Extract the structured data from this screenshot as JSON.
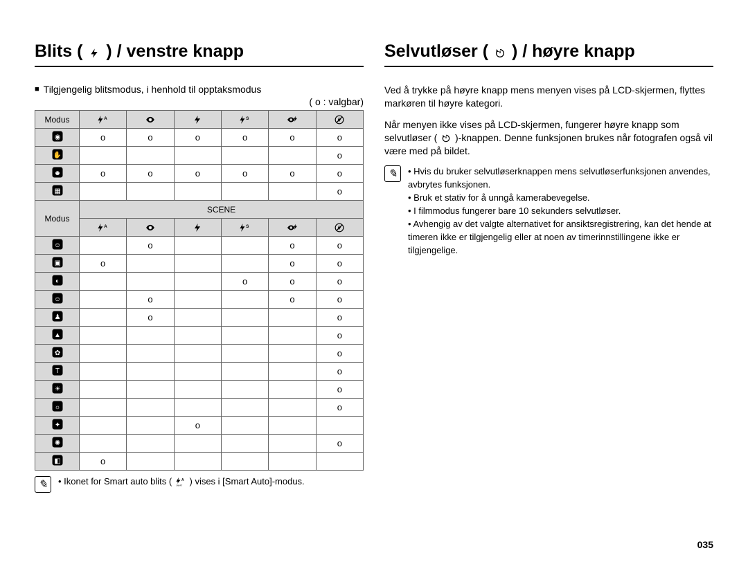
{
  "page_number": "035",
  "left": {
    "heading_pre": "Blits (",
    "heading_post": ") / venstre knapp",
    "subheading": "Tilgjengelig blitsmodus, i henhold til opptaksmodus",
    "legend": "( o : valgbar)",
    "table": {
      "header_label": "Modus",
      "scene_label": "SCENE",
      "columns_count": 6,
      "top_rows": [
        {
          "marks": [
            "o",
            "o",
            "o",
            "o",
            "o",
            "o"
          ]
        },
        {
          "marks": [
            "",
            "",
            "",
            "",
            "",
            "o"
          ]
        },
        {
          "marks": [
            "o",
            "o",
            "o",
            "o",
            "o",
            "o"
          ]
        },
        {
          "marks": [
            "",
            "",
            "",
            "",
            "",
            "o"
          ]
        }
      ],
      "scene_rows": [
        {
          "marks": [
            "",
            "o",
            "",
            "",
            "o",
            "o"
          ]
        },
        {
          "marks": [
            "o",
            "",
            "",
            "",
            "o",
            "o"
          ]
        },
        {
          "marks": [
            "",
            "",
            "",
            "o",
            "o",
            "o"
          ]
        },
        {
          "marks": [
            "",
            "o",
            "",
            "",
            "o",
            "o"
          ]
        },
        {
          "marks": [
            "",
            "o",
            "",
            "",
            "",
            "o"
          ]
        },
        {
          "marks": [
            "",
            "",
            "",
            "",
            "",
            "o"
          ]
        },
        {
          "marks": [
            "",
            "",
            "",
            "",
            "",
            "o"
          ]
        },
        {
          "marks": [
            "",
            "",
            "",
            "",
            "",
            "o"
          ]
        },
        {
          "marks": [
            "",
            "",
            "",
            "",
            "",
            "o"
          ]
        },
        {
          "marks": [
            "",
            "",
            "",
            "",
            "",
            "o"
          ]
        },
        {
          "marks": [
            "",
            "",
            "o",
            "",
            "",
            ""
          ]
        },
        {
          "marks": [
            "",
            "",
            "",
            "",
            "",
            "o"
          ]
        },
        {
          "marks": [
            "o",
            "",
            "",
            "",
            "",
            ""
          ]
        }
      ]
    },
    "footnote_pre": "Ikonet for Smart auto blits (",
    "footnote_post": ") vises i [Smart Auto]-modus."
  },
  "right": {
    "heading_pre": "Selvutløser (",
    "heading_post": ") / høyre knapp",
    "para1": "Ved å trykke på høyre knapp mens menyen vises på LCD-skjermen, flyttes markøren til høyre kategori.",
    "para2_a": "Når menyen ikke vises på LCD-skjermen, fungerer høyre knapp som selvutløser (",
    "para2_b": ")-knappen. Denne funksjonen brukes når fotografen også vil være med på bildet.",
    "notes": [
      "Hvis du bruker selvutløserknappen mens selvutløserfunksjonen anvendes, avbrytes funksjonen.",
      "Bruk et stativ for å unngå kamerabevegelse.",
      "I filmmodus fungerer bare 10 sekunders selvutløser.",
      "Avhengig av det valgte alternativet for ansiktsregistrering, kan det hende at timeren ikke er tilgjengelig eller at noen av timerinnstillingene ikke er tilgjengelige."
    ]
  },
  "colors": {
    "header_bg": "#d9d9d9",
    "border": "#666666",
    "text": "#000000",
    "rule": "#000000"
  }
}
